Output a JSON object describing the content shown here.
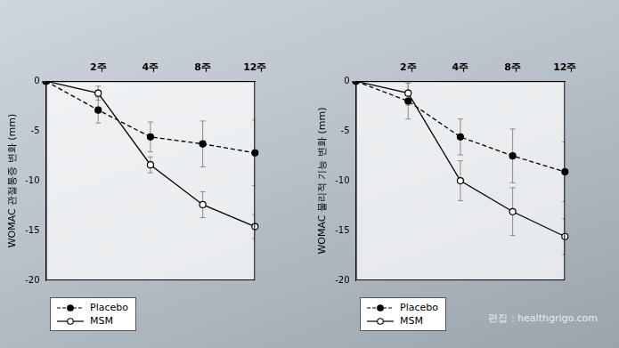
{
  "chart_data": [
    {
      "type": "line",
      "y_label": "WOMAC 관절통증 변화 (mm)",
      "categories": [
        null,
        "2주",
        "4주",
        "8주",
        "12주"
      ],
      "ylim": [
        -20,
        0
      ],
      "yticks": [
        0,
        -5,
        -10,
        -15,
        -20
      ],
      "grid": false,
      "legend": "bottom left",
      "series": [
        {
          "name": "Placebo",
          "color": "#000000",
          "marker": "filled_circle",
          "line_style": "dashed",
          "values": [
            0,
            -2.9,
            -5.6,
            -6.3,
            -7.2
          ],
          "errors": [
            null,
            1.3,
            1.5,
            2.3,
            3.3
          ]
        },
        {
          "name": "MSM",
          "color": "#000000",
          "marker": "open_circle",
          "line_style": "solid",
          "values": [
            0,
            -1.2,
            -8.4,
            -12.4,
            -14.6
          ],
          "errors": [
            null,
            0.7,
            0.8,
            1.3,
            1.2
          ]
        }
      ]
    },
    {
      "type": "line",
      "y_label": "WOMAC 물리적 기능 변화 (mm)",
      "categories": [
        null,
        "2주",
        "4주",
        "8주",
        "12주"
      ],
      "ylim": [
        -20,
        0
      ],
      "yticks": [
        0,
        -5,
        -10,
        -15,
        -20
      ],
      "grid": false,
      "legend": "bottom left",
      "series": [
        {
          "name": "Placebo",
          "color": "#000000",
          "marker": "filled_circle",
          "line_style": "dashed",
          "values": [
            0,
            -2.0,
            -5.6,
            -7.5,
            -9.1
          ],
          "errors": [
            null,
            1.8,
            1.8,
            2.7,
            3.0
          ]
        },
        {
          "name": "MSM",
          "color": "#000000",
          "marker": "open_circle",
          "line_style": "solid",
          "values": [
            0,
            -1.2,
            -10.0,
            -13.1,
            -15.6
          ],
          "errors": [
            null,
            1.2,
            2.0,
            2.4,
            1.8
          ]
        }
      ]
    }
  ],
  "source": "편집 : healthgrigo.com"
}
